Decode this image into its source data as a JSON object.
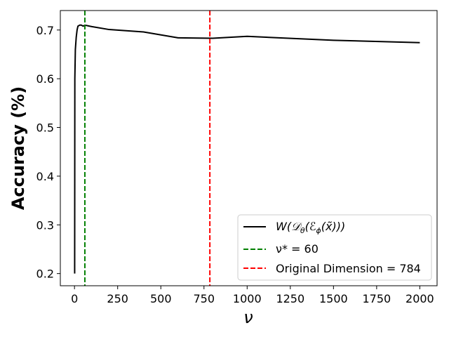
{
  "chart_data": {
    "type": "line",
    "title": "",
    "xlabel": "ν",
    "ylabel": "Accuracy (%)",
    "xlim": [
      -82,
      2100
    ],
    "ylim": [
      0.175,
      0.74
    ],
    "x_ticks": [
      0,
      250,
      500,
      750,
      1000,
      1250,
      1500,
      1750,
      2000
    ],
    "x_tick_labels": [
      "0",
      "250",
      "500",
      "750",
      "1000",
      "1250",
      "1500",
      "1750",
      "2000"
    ],
    "y_ticks": [
      0.2,
      0.3,
      0.4,
      0.5,
      0.6,
      0.7
    ],
    "y_tick_labels": [
      "0.2",
      "0.3",
      "0.4",
      "0.5",
      "0.6",
      "0.7"
    ],
    "grid": false,
    "legend_position": "bottom-right",
    "series": [
      {
        "name": "W(D_θ(E_φ(x̃)))",
        "color": "#000000",
        "style": "solid",
        "x": [
          1,
          2,
          5,
          10,
          15,
          20,
          30,
          40,
          50,
          60,
          100,
          200,
          400,
          600,
          800,
          1000,
          1500,
          2000
        ],
        "y": [
          0.2,
          0.6,
          0.66,
          0.685,
          0.7,
          0.708,
          0.71,
          0.71,
          0.708,
          0.71,
          0.707,
          0.701,
          0.696,
          0.684,
          0.683,
          0.687,
          0.679,
          0.674
        ]
      }
    ],
    "vlines": [
      {
        "name": "ν* = 60",
        "x": 60,
        "color": "#008000",
        "style": "dashed"
      },
      {
        "name": "Original Dimension = 784",
        "x": 784,
        "color": "#ff0000",
        "style": "dashed"
      }
    ]
  }
}
